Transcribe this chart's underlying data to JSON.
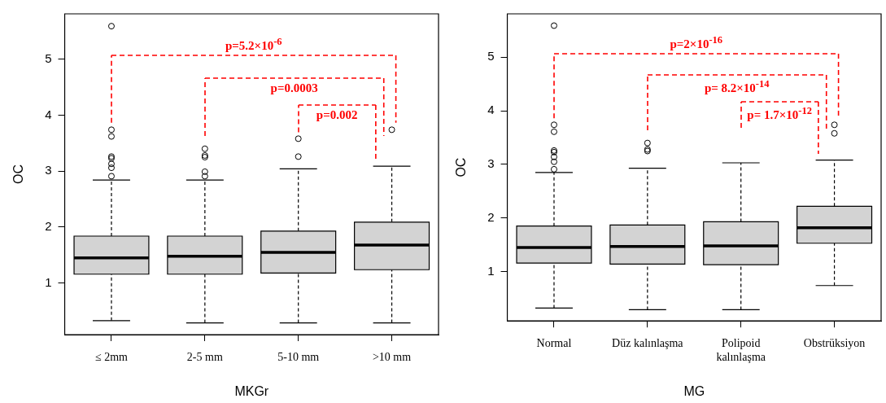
{
  "chart_data": [
    {
      "type": "box",
      "xlabel": "MKGr",
      "ylabel": "OC",
      "categories": [
        "≤ 2mm",
        "2-5 mm",
        "5-10 mm",
        ">10 mm"
      ],
      "color": "#d3d3d3",
      "ylim": [
        0.08,
        5.81
      ],
      "yticks": [
        1,
        2,
        3,
        4,
        5
      ],
      "boxes": [
        {
          "low": 0.33,
          "q1": 1.16,
          "median": 1.45,
          "q3": 1.84,
          "high": 2.84,
          "outliers": [
            2.91,
            3.06,
            3.13,
            3.23,
            3.26,
            3.62,
            3.74,
            5.59
          ]
        },
        {
          "low": 0.29,
          "q1": 1.16,
          "median": 1.48,
          "q3": 1.84,
          "high": 2.84,
          "outliers": [
            2.91,
            2.99,
            3.25,
            3.28,
            3.4
          ]
        },
        {
          "low": 0.29,
          "q1": 1.18,
          "median": 1.55,
          "q3": 1.93,
          "high": 3.04,
          "outliers": [
            3.26,
            3.58
          ]
        },
        {
          "low": 0.29,
          "q1": 1.24,
          "median": 1.68,
          "q3": 2.09,
          "high": 3.09,
          "outliers": [
            3.74
          ]
        }
      ],
      "annotations": [
        "p=5.2×10$^{-6}$",
        "p=0.0003",
        "p=0.002"
      ]
    },
    {
      "type": "box",
      "xlabel": "MG",
      "ylabel": "OC",
      "categories": [
        "Normal",
        "Düz kalınlaşma",
        "Polipoid kalınlaşma",
        "Obstrüksiyon"
      ],
      "color": "#d3d3d3",
      "ylim": [
        0.08,
        5.81
      ],
      "yticks": [
        1,
        2,
        3,
        4,
        5
      ],
      "boxes": [
        {
          "low": 0.32,
          "q1": 1.16,
          "median": 1.45,
          "q3": 1.85,
          "high": 2.85,
          "outliers": [
            2.91,
            3.05,
            3.14,
            3.23,
            3.26,
            3.61,
            3.74,
            5.59
          ]
        },
        {
          "low": 0.29,
          "q1": 1.14,
          "median": 1.47,
          "q3": 1.87,
          "high": 2.93,
          "outliers": [
            3.25,
            3.28,
            3.4
          ]
        },
        {
          "low": 0.29,
          "q1": 1.13,
          "median": 1.48,
          "q3": 1.93,
          "high": 3.03
        },
        {
          "low": 0.74,
          "q1": 1.53,
          "median": 1.82,
          "q3": 2.22,
          "high": 3.08,
          "outliers": [
            3.58,
            3.74
          ]
        }
      ],
      "annotations": [
        "p=2×10$^{-16}$",
        "p= 8.2×10$^{-14}$",
        "p= 1.7×10$^{-12}$"
      ]
    }
  ]
}
